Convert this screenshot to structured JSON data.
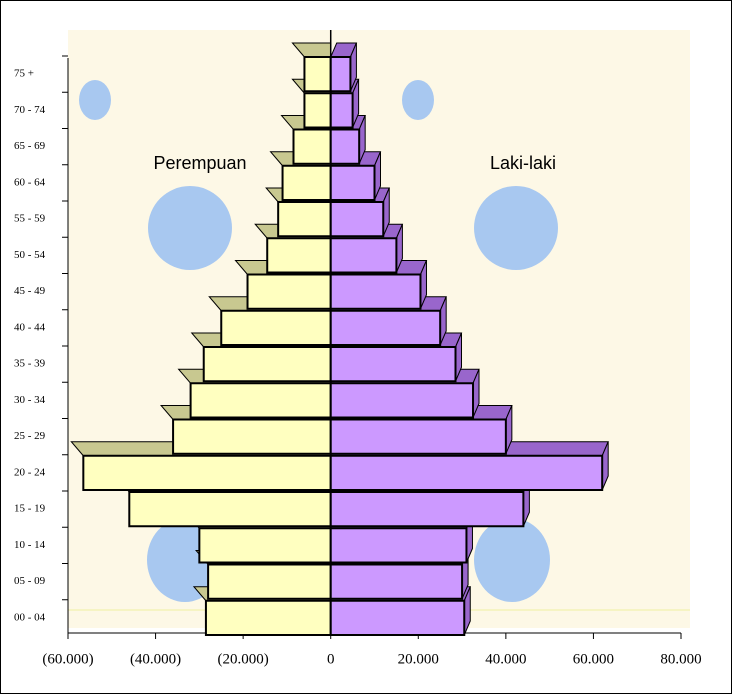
{
  "chart_data": {
    "type": "pyramid",
    "categories": [
      "00 - 04",
      "05 - 09",
      "10 - 14",
      "15 - 19",
      "20 - 24",
      "25 - 29",
      "30 - 34",
      "35 - 39",
      "40 - 44",
      "45 - 49",
      "50 - 54",
      "55 - 59",
      "60 - 64",
      "65 - 69",
      "70 - 74",
      "75 +"
    ],
    "series": [
      {
        "name": "Perempuan",
        "color": "#ffffc0",
        "values": [
          -28500,
          -28000,
          -30000,
          -46000,
          -56500,
          -36000,
          -32000,
          -29000,
          -25000,
          -19000,
          -14500,
          -12000,
          -11000,
          -8500,
          -6000,
          -6000
        ]
      },
      {
        "name": "Laki-laki",
        "color": "#cc99ff",
        "values": [
          30500,
          30000,
          31000,
          44000,
          62000,
          40000,
          32500,
          28500,
          25000,
          20500,
          15000,
          12000,
          10000,
          6500,
          5000,
          4500
        ]
      }
    ],
    "xlim": [
      -60000,
      80000
    ],
    "xticks": [
      {
        "value": -60000,
        "label": "(60.000)"
      },
      {
        "value": -40000,
        "label": "(40.000)"
      },
      {
        "value": -20000,
        "label": "(20.000)"
      },
      0,
      {
        "value": 20000,
        "label": "20.000"
      },
      {
        "value": 40000,
        "label": "40.000"
      },
      {
        "value": 60000,
        "label": "60.000"
      },
      {
        "value": 80000,
        "label": "80.000"
      }
    ]
  }
}
